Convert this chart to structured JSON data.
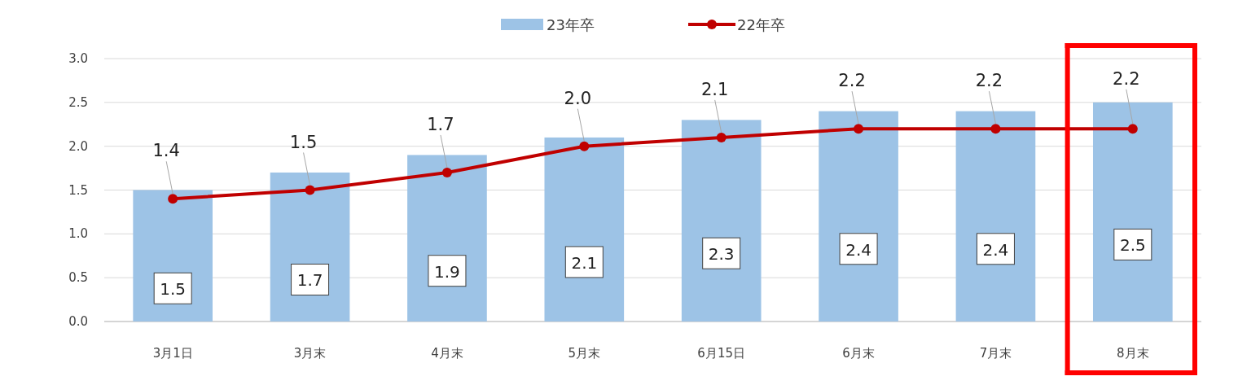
{
  "chart_data": {
    "type": "bar",
    "categories": [
      "3月1日",
      "3月末",
      "4月末",
      "5月末",
      "6月15日",
      "6月末",
      "7月末",
      "8月末"
    ],
    "series": [
      {
        "name": "23年卒",
        "color": "#9dc3e6",
        "values": [
          1.5,
          1.7,
          1.9,
          2.1,
          2.3,
          2.4,
          2.4,
          2.5
        ],
        "value_labels": [
          "1.5",
          "1.7",
          "1.9",
          "2.1",
          "2.3",
          "2.4",
          "2.4",
          "2.5"
        ]
      },
      {
        "name": "22年卒",
        "type": "line",
        "color": "#c00000",
        "marker": "circle",
        "values": [
          1.4,
          1.5,
          1.7,
          2.0,
          2.1,
          2.2,
          2.2,
          2.2
        ],
        "value_labels": [
          "1.4",
          "1.5",
          "1.7",
          "2.0",
          "2.1",
          "2.2",
          "2.2",
          "2.2"
        ]
      }
    ],
    "ylim": [
      0,
      3
    ],
    "yticks": [
      {
        "value": 0,
        "label": "0.0"
      },
      {
        "value": 0.5,
        "label": "0.5"
      },
      {
        "value": 1,
        "label": "1.0"
      },
      {
        "value": 1.5,
        "label": "1.5"
      },
      {
        "value": 2,
        "label": "2.0"
      },
      {
        "value": 2.5,
        "label": "2.5"
      },
      {
        "value": 3,
        "label": "3.0"
      }
    ],
    "grid": "y",
    "legend": "top"
  }
}
